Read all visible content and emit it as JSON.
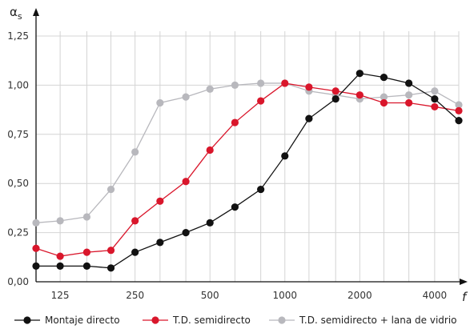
{
  "chart_data": {
    "type": "line",
    "ylabel": "α",
    "ylabel_sub": "s",
    "xlabel": "f",
    "ylim": [
      0,
      1.25
    ],
    "y_ticks": [
      {
        "v": 0,
        "label": "0,00"
      },
      {
        "v": 0.25,
        "label": "0,25"
      },
      {
        "v": 0.5,
        "label": "0,50"
      },
      {
        "v": 0.75,
        "label": "0,75"
      },
      {
        "v": 1.0,
        "label": "1,00"
      },
      {
        "v": 1.25,
        "label": "1,25"
      }
    ],
    "x": [
      100,
      125,
      160,
      200,
      250,
      315,
      400,
      500,
      630,
      800,
      1000,
      1250,
      1600,
      2000,
      2500,
      3150,
      4000,
      5000
    ],
    "x_tick_labels": [
      "125",
      "250",
      "500",
      "1000",
      "2000",
      "4000"
    ],
    "x_scale": "log",
    "grid": true,
    "legend_position": "bottom",
    "series": [
      {
        "name": "Montaje directo",
        "color": "#111111",
        "values": [
          0.08,
          0.08,
          0.08,
          0.07,
          0.15,
          0.2,
          0.25,
          0.3,
          0.38,
          0.47,
          0.64,
          0.83,
          0.93,
          1.06,
          1.04,
          1.01,
          0.93,
          0.82
        ]
      },
      {
        "name": "T.D. semidirecto",
        "color": "#d9162b",
        "values": [
          0.17,
          0.13,
          0.15,
          0.16,
          0.31,
          0.41,
          0.51,
          0.67,
          0.81,
          0.92,
          1.01,
          0.99,
          0.97,
          0.95,
          0.91,
          0.91,
          0.89,
          0.87
        ]
      },
      {
        "name": "T.D. semidirecto + lana de vidrio",
        "color": "#b8b8bd",
        "values": [
          0.3,
          0.31,
          0.33,
          0.47,
          0.66,
          0.91,
          0.94,
          0.98,
          1.0,
          1.01,
          1.01,
          0.97,
          0.95,
          0.93,
          0.94,
          0.95,
          0.97,
          0.9
        ]
      }
    ]
  }
}
